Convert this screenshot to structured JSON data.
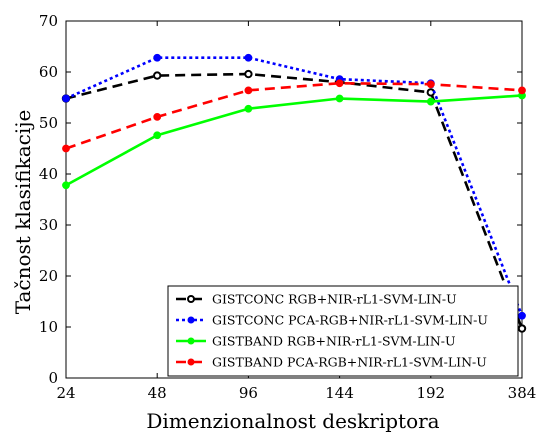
{
  "chart_data": {
    "type": "line",
    "xlabel": "Dimenzionalnost deskriptora",
    "ylabel": "Tačnost klasifikacije",
    "categories": [
      "24",
      "48",
      "96",
      "144",
      "192",
      "384"
    ],
    "ylim": [
      0,
      70
    ],
    "yticks": [
      0,
      10,
      20,
      30,
      40,
      50,
      60,
      70
    ],
    "grid": false,
    "legend_position": "bottom-right",
    "series": [
      {
        "name": "GISTCONC RGB+NIR-rL1-SVM-LIN-U",
        "values": [
          54.8,
          59.3,
          59.6,
          58.0,
          56.0,
          9.7
        ],
        "color": "#000000",
        "dash": "dashed",
        "marker": "open-circle"
      },
      {
        "name": "GISTCONC PCA-RGB+NIR-rL1-SVM-LIN-U",
        "values": [
          54.8,
          62.8,
          62.8,
          58.6,
          57.8,
          12.2
        ],
        "color": "#0000ff",
        "dash": "dotted",
        "marker": "dot"
      },
      {
        "name": "GISTBAND RGB+NIR-rL1-SVM-LIN-U",
        "values": [
          37.8,
          47.6,
          52.8,
          54.8,
          54.2,
          55.4
        ],
        "color": "#00ff00",
        "dash": "solid",
        "marker": "dot"
      },
      {
        "name": "GISTBAND PCA-RGB+NIR-rL1-SVM-LIN-U",
        "values": [
          45.0,
          51.2,
          56.4,
          57.8,
          57.6,
          56.4
        ],
        "color": "#ff0000",
        "dash": "dashed",
        "marker": "dot"
      }
    ]
  }
}
